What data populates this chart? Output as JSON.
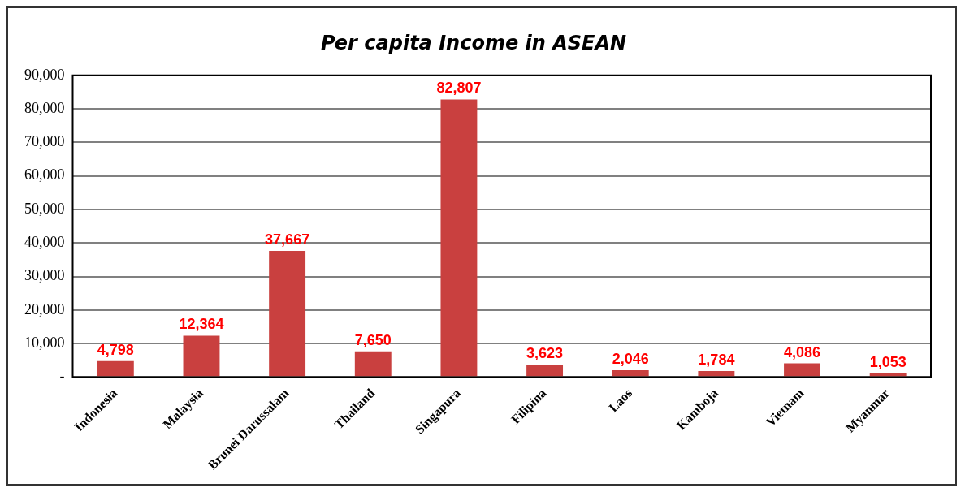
{
  "chart_data": {
    "type": "bar",
    "title": "Per capita Income in ASEAN",
    "categories": [
      "Indonesia",
      "Malaysia",
      "Brunei Darussalam",
      "Thailand",
      "Singapura",
      "Filipina",
      "Laos",
      "Kamboja",
      "Vietnam",
      "Myanmar"
    ],
    "values": [
      4798,
      12364,
      37667,
      7650,
      82807,
      3623,
      2046,
      1784,
      4086,
      1053
    ],
    "value_labels": [
      "4,798",
      "12,364",
      "37,667",
      "7,650",
      "82,807",
      "3,623",
      "2,046",
      "1,784",
      "4,086",
      "1,053"
    ],
    "color": "#c9403f",
    "ylim": [
      0,
      90000
    ],
    "yticks": [
      {
        "value": 0,
        "label": "-"
      },
      {
        "value": 10000,
        "label": "10,000"
      },
      {
        "value": 20000,
        "label": "20,000"
      },
      {
        "value": 30000,
        "label": "30,000"
      },
      {
        "value": 40000,
        "label": "40,000"
      },
      {
        "value": 50000,
        "label": "50,000"
      },
      {
        "value": 60000,
        "label": "60,000"
      },
      {
        "value": 70000,
        "label": "70,000"
      },
      {
        "value": 80000,
        "label": "80,000"
      },
      {
        "value": 90000,
        "label": "90,000"
      }
    ],
    "grid": "y",
    "legend": false
  }
}
